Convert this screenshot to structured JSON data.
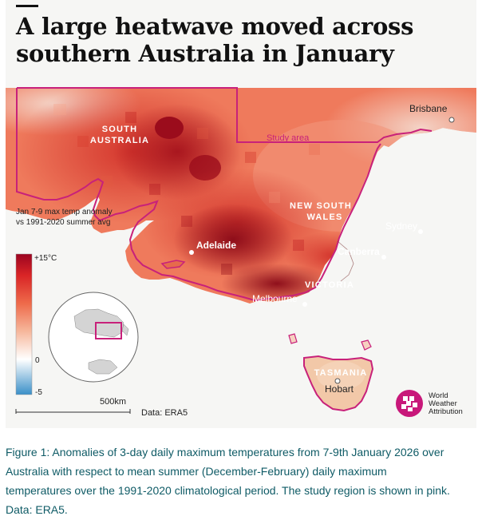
{
  "title": {
    "line1": "A large heatwave moved across",
    "line2": "southern Australia in January"
  },
  "map": {
    "regions": {
      "south_australia": [
        "SOUTH",
        "AUSTRALIA"
      ],
      "new_south_wales": [
        "NEW SOUTH",
        "WALES"
      ],
      "victoria": "VICTORIA",
      "tasmania": "TASMANIA"
    },
    "cities": {
      "brisbane": "Brisbane",
      "sydney": "Sydney",
      "canberra": "Canberra",
      "adelaide": "Adelaide",
      "melbourne": "Melbourne",
      "hobart": "Hobart"
    },
    "study_area_label": "Study area",
    "legend": {
      "title_line1": "Jan 7-9 max temp anomaly",
      "title_line2": "vs 1991-2020 summer avg",
      "max_label": "+15°C",
      "zero_label": "0",
      "min_label": "-5",
      "range": [
        -5,
        15
      ],
      "colors": [
        "#3a8fc8",
        "#ffffff",
        "#f6b79c",
        "#ee6a4a",
        "#d92426",
        "#9b0420"
      ]
    },
    "scale_bar_label": "500km",
    "data_source": "Data: ERA5",
    "colors": {
      "study_area_outline": "#c8217a",
      "tasmania_fill": "#f2c8a8",
      "brand": "#c8187a"
    }
  },
  "logo": {
    "line1": "World",
    "line2": "Weather",
    "line3": "Attribution"
  },
  "caption": {
    "line1": "Figure 1: Anomalies of 3-day daily maximum temperatures from 7-9th January 2026 over",
    "line2": "Australia with respect to mean summer (December-February) daily maximum",
    "line3": "temperatures over the 1991-2020 climatological period. The study region is shown in pink.",
    "line4": "Data: ERA5."
  }
}
